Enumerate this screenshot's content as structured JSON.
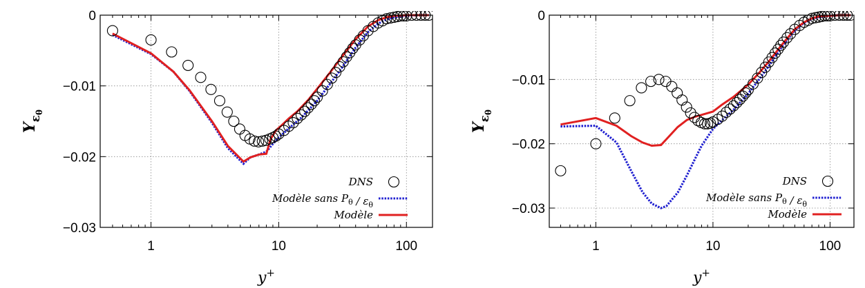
{
  "chart_data": [
    {
      "type": "line",
      "x_scale": "log",
      "xlim": [
        0.4,
        160
      ],
      "ylim": [
        -0.03,
        0
      ],
      "x_ticks": [
        1,
        10,
        100
      ],
      "x_tick_labels": [
        "1",
        "10",
        "100"
      ],
      "y_ticks": [
        0,
        -0.01,
        -0.02,
        -0.03
      ],
      "y_tick_labels": [
        "0",
        "−0.01",
        "−0.02",
        "−0.03"
      ],
      "xlabel": "y+",
      "ylabel": "Yεθ",
      "grid": true,
      "legend_position": "bottom-right",
      "series": [
        {
          "name": "DNS",
          "style": "open-circle",
          "color": "#000000",
          "x": [
            0.5,
            1.0,
            1.45,
            1.95,
            2.45,
            2.95,
            3.45,
            3.95,
            4.45,
            4.95,
            5.45,
            5.95,
            6.45,
            6.95,
            7.45,
            7.95,
            8.5,
            9,
            9.5,
            10,
            11,
            12,
            13,
            14,
            15,
            16,
            17,
            18,
            19,
            20,
            22,
            24,
            26,
            28,
            30,
            32,
            34,
            36,
            38,
            40,
            43,
            46,
            50,
            55,
            60,
            65,
            70,
            75,
            80,
            85,
            90,
            95,
            100,
            110,
            120,
            130,
            140,
            150
          ],
          "y": [
            -0.0022,
            -0.0035,
            -0.0052,
            -0.0071,
            -0.0088,
            -0.0105,
            -0.0121,
            -0.0137,
            -0.015,
            -0.0161,
            -0.017,
            -0.0175,
            -0.0178,
            -0.0179,
            -0.0178,
            -0.0177,
            -0.0175,
            -0.0173,
            -0.0171,
            -0.0168,
            -0.0163,
            -0.0157,
            -0.0152,
            -0.0146,
            -0.0141,
            -0.0136,
            -0.0131,
            -0.0126,
            -0.0121,
            -0.0116,
            -0.0107,
            -0.0098,
            -0.0089,
            -0.0081,
            -0.0073,
            -0.0066,
            -0.0059,
            -0.0053,
            -0.0047,
            -0.0042,
            -0.0035,
            -0.0029,
            -0.0022,
            -0.0016,
            -0.0011,
            -0.0008,
            -0.0005,
            -0.0004,
            -0.0003,
            -0.0002,
            -0.0001,
            -0.0001,
            -0.0001,
            0,
            0,
            0,
            0,
            0
          ]
        },
        {
          "name": "Modèle sans Pθ / εθ",
          "style": "dotted",
          "color": "#1f1fd0",
          "x": [
            0.5,
            1,
            1.5,
            2,
            3,
            4,
            5.3,
            6,
            7,
            8,
            9,
            10,
            12,
            15,
            20,
            25,
            30,
            40,
            50,
            60,
            70,
            80,
            100,
            120,
            150
          ],
          "y": [
            -0.0028,
            -0.0055,
            -0.008,
            -0.0107,
            -0.0152,
            -0.0188,
            -0.021,
            -0.0201,
            -0.0197,
            -0.0193,
            -0.0182,
            -0.0173,
            -0.016,
            -0.0145,
            -0.0121,
            -0.0098,
            -0.0079,
            -0.0046,
            -0.0024,
            -0.0012,
            -0.0006,
            -0.0003,
            -0.0001,
            0,
            0
          ]
        },
        {
          "name": "Modèle",
          "style": "solid",
          "color": "#e02020",
          "x": [
            0.5,
            1,
            1.5,
            2,
            3,
            4,
            5.3,
            6,
            7,
            8,
            8.6,
            9.5,
            10.5,
            12,
            14,
            17,
            20,
            25,
            30,
            40,
            50,
            60,
            70,
            80,
            100,
            120,
            150
          ],
          "y": [
            -0.0026,
            -0.0054,
            -0.008,
            -0.0106,
            -0.015,
            -0.0185,
            -0.0207,
            -0.0201,
            -0.0197,
            -0.0196,
            -0.0176,
            -0.0163,
            -0.0156,
            -0.0146,
            -0.0136,
            -0.012,
            -0.0104,
            -0.0082,
            -0.0063,
            -0.0034,
            -0.0016,
            -0.0007,
            -0.0003,
            -0.0001,
            0,
            0,
            0
          ]
        }
      ]
    },
    {
      "type": "line",
      "x_scale": "log",
      "xlim": [
        0.4,
        160
      ],
      "ylim": [
        -0.033,
        0
      ],
      "x_ticks": [
        1,
        10,
        100
      ],
      "x_tick_labels": [
        "1",
        "10",
        "100"
      ],
      "y_ticks": [
        0,
        -0.01,
        -0.02,
        -0.03
      ],
      "y_tick_labels": [
        "0",
        "−0.01",
        "−0.02",
        "−0.03"
      ],
      "xlabel": "y+",
      "ylabel": "Yεθ",
      "grid": true,
      "legend_position": "bottom-right",
      "series": [
        {
          "name": "DNS",
          "style": "open-circle",
          "color": "#000000",
          "x": [
            0.5,
            1.0,
            1.45,
            1.95,
            2.45,
            2.95,
            3.45,
            3.95,
            4.45,
            4.95,
            5.45,
            5.95,
            6.45,
            6.95,
            7.45,
            7.95,
            8.5,
            9,
            9.5,
            10,
            11,
            12,
            13,
            14,
            15,
            16,
            17,
            18,
            19,
            20,
            22,
            24,
            26,
            28,
            30,
            32,
            34,
            36,
            38,
            40,
            43,
            46,
            50,
            55,
            60,
            65,
            70,
            75,
            80,
            85,
            90,
            95,
            100,
            110,
            120,
            130,
            140,
            150
          ],
          "y": [
            -0.0242,
            -0.02,
            -0.016,
            -0.0133,
            -0.0113,
            -0.0103,
            -0.01,
            -0.0103,
            -0.0111,
            -0.0121,
            -0.0132,
            -0.0143,
            -0.0152,
            -0.0159,
            -0.0164,
            -0.0167,
            -0.0169,
            -0.0169,
            -0.0168,
            -0.0166,
            -0.0162,
            -0.0157,
            -0.0151,
            -0.0146,
            -0.0141,
            -0.0136,
            -0.0131,
            -0.0126,
            -0.0121,
            -0.0116,
            -0.0107,
            -0.0098,
            -0.0089,
            -0.0081,
            -0.0073,
            -0.0066,
            -0.0059,
            -0.0053,
            -0.0047,
            -0.0042,
            -0.0035,
            -0.0029,
            -0.0022,
            -0.0016,
            -0.0011,
            -0.0008,
            -0.0005,
            -0.0004,
            -0.0003,
            -0.0002,
            -0.0001,
            -0.0001,
            -0.0001,
            0,
            0,
            0,
            0,
            0
          ]
        },
        {
          "name": "Modèle sans Pθ / εθ",
          "style": "dotted",
          "color": "#1f1fd0",
          "x": [
            0.5,
            1,
            1.5,
            2,
            2.5,
            3,
            3.6,
            4,
            5,
            6,
            7,
            8,
            10,
            12,
            15,
            20,
            25,
            30,
            40,
            50,
            60,
            70,
            80,
            100,
            120,
            150
          ],
          "y": [
            -0.0173,
            -0.0172,
            -0.0198,
            -0.0242,
            -0.0275,
            -0.0293,
            -0.03,
            -0.0297,
            -0.0276,
            -0.0249,
            -0.0224,
            -0.0203,
            -0.0177,
            -0.0163,
            -0.0147,
            -0.0122,
            -0.0099,
            -0.0079,
            -0.0046,
            -0.0024,
            -0.0012,
            -0.0006,
            -0.0003,
            -0.0001,
            0,
            0
          ]
        },
        {
          "name": "Modèle",
          "style": "solid",
          "color": "#e02020",
          "x": [
            0.5,
            1,
            1.5,
            2,
            2.5,
            3,
            3.6,
            4,
            5,
            6,
            7,
            8,
            10,
            12,
            15,
            20,
            25,
            30,
            40,
            50,
            60,
            70,
            80,
            100,
            120,
            150
          ],
          "y": [
            -0.017,
            -0.016,
            -0.0172,
            -0.0188,
            -0.0198,
            -0.0203,
            -0.0202,
            -0.0193,
            -0.0174,
            -0.0163,
            -0.0158,
            -0.0155,
            -0.015,
            -0.0139,
            -0.0127,
            -0.0108,
            -0.0089,
            -0.0072,
            -0.0043,
            -0.0022,
            -0.0011,
            -0.0005,
            -0.0002,
            -0.0001,
            0,
            0
          ]
        }
      ]
    }
  ]
}
